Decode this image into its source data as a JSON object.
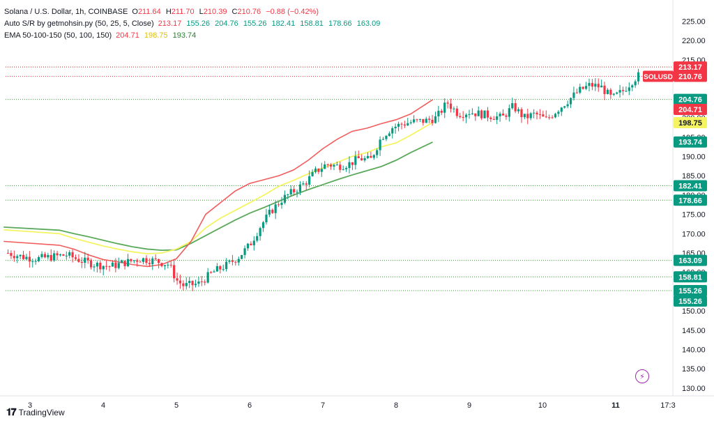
{
  "legend": {
    "title": "Solana / U.S. Dollar, 1h, COINBASE",
    "ohlc": {
      "o": "211.64",
      "h": "211.70",
      "l": "210.39",
      "c": "210.76",
      "chg": "−0.88 (−0.42%)"
    },
    "sr_label": "Auto S/R by getmohsin.py (50, 25, 5, Close)",
    "sr_values": [
      "213.17",
      "155.26",
      "204.76",
      "155.26",
      "182.41",
      "158.81",
      "178.66",
      "163.09"
    ],
    "ema_label": "EMA 50-100-150 (50, 100, 150)",
    "ema_values": [
      "204.71",
      "198.75",
      "193.74"
    ]
  },
  "brand": "TradingView",
  "colors": {
    "up": "#089981",
    "down": "#f23645",
    "ema50": "#f25c5c",
    "ema100": "#f4f462",
    "ema150": "#5aa95a",
    "sr_line": "#2e9c2e",
    "price_line": "#f23645"
  },
  "chart_data": {
    "type": "candlestick",
    "title": "Solana / U.S. Dollar, 1h, COINBASE",
    "y_ticks": [
      130,
      135,
      140,
      145,
      150,
      155,
      160,
      165,
      170,
      175,
      180,
      185,
      190,
      195,
      200,
      205,
      210,
      215,
      220,
      225
    ],
    "ylim": [
      128,
      226
    ],
    "x_ticks": [
      "3",
      "4",
      "5",
      "6",
      "7",
      "8",
      "9",
      "10",
      "11",
      "17:3"
    ],
    "support_resistance": [
      213.17,
      204.76,
      182.41,
      178.66,
      163.09,
      158.81,
      155.26,
      155.26
    ],
    "last_price": {
      "label": "SOLUSD",
      "value": 210.76
    },
    "price_labels": [
      {
        "text": "213.17",
        "value": 213.17,
        "color": "#f23645"
      },
      {
        "text": "210.76",
        "value": 210.76,
        "color": "#f23645"
      },
      {
        "text": "204.76",
        "value": 204.76,
        "color": "#089981"
      },
      {
        "text": "204.71",
        "value": 204.71,
        "color": "#f23645"
      },
      {
        "text": "198.75",
        "value": 198.75,
        "color": "#f4f462"
      },
      {
        "text": "193.74",
        "value": 193.74,
        "color": "#089981"
      },
      {
        "text": "182.41",
        "value": 182.41,
        "color": "#089981"
      },
      {
        "text": "178.66",
        "value": 178.66,
        "color": "#089981"
      },
      {
        "text": "163.09",
        "value": 163.09,
        "color": "#089981"
      },
      {
        "text": "158.81",
        "value": 158.81,
        "color": "#089981"
      },
      {
        "text": "155.26",
        "value": 155.26,
        "color": "#089981"
      },
      {
        "text": "155.26",
        "value": 155.26,
        "color": "#089981"
      }
    ],
    "ema50": [
      168.0,
      167.0,
      166.0,
      164.5,
      163.3,
      162.7,
      162.0,
      161.5,
      162.0,
      163.5,
      168,
      175,
      178,
      181,
      183,
      184,
      185,
      186.5,
      189,
      192,
      194.5,
      196.5,
      197.3,
      198.5,
      199.5,
      201,
      204.7
    ],
    "ema100": [
      171.0,
      170.0,
      168.8,
      167.8,
      166.8,
      166.0,
      165.3,
      164.8,
      165.0,
      166.0,
      168,
      171.5,
      174,
      176,
      178,
      180,
      182.3,
      183.8,
      185.5,
      187,
      188.5,
      190,
      191,
      192.5,
      193.5,
      195.5,
      198.8
    ],
    "ema150": [
      171.7,
      170.9,
      170.0,
      169.2,
      168.3,
      167.4,
      166.6,
      166.0,
      165.7,
      165.8,
      167.5,
      169.5,
      171.5,
      173.5,
      175.3,
      176.8,
      178.4,
      180,
      181.4,
      182.7,
      184,
      185.2,
      186.3,
      187.4,
      189,
      191,
      193.7
    ],
    "ema_x": [
      3.3,
      3.4,
      3.6,
      3.8,
      4.0,
      4.2,
      4.4,
      4.6,
      4.8,
      5.0,
      5.2,
      5.4,
      5.6,
      5.8,
      6.0,
      6.2,
      6.4,
      6.6,
      6.8,
      7.0,
      7.2,
      7.4,
      7.6,
      7.8,
      8.0,
      8.2,
      8.5
    ],
    "close_path_x": [
      2.7,
      2.9,
      3.1,
      3.3,
      3.5,
      3.7,
      3.9,
      4.1,
      4.3,
      4.5,
      4.7,
      4.9,
      5.0,
      5.1,
      5.3,
      5.5,
      5.7,
      5.85,
      6.0,
      6.15,
      6.3,
      6.45,
      6.6,
      6.75,
      6.9,
      7.05,
      7.2,
      7.35,
      7.5,
      7.65,
      7.8,
      7.95,
      8.1,
      8.25,
      8.4,
      8.55,
      8.7,
      8.85,
      9.0,
      9.15,
      9.3,
      9.45,
      9.6,
      9.75,
      9.9,
      10.05,
      10.2,
      10.35,
      10.5,
      10.65,
      10.8,
      10.95,
      11.1,
      11.25,
      11.35
    ],
    "close_path_y": [
      165,
      164,
      163.5,
      164,
      164.5,
      163,
      162,
      161.5,
      162.5,
      163.5,
      163,
      162,
      158,
      156.5,
      157,
      160,
      162,
      164,
      167,
      172,
      176,
      179,
      181,
      183,
      186,
      188,
      187.5,
      188,
      189.5,
      189,
      195,
      197.5,
      198.5,
      199,
      199.2,
      200,
      204,
      201,
      201.5,
      201,
      200.5,
      200,
      203,
      200,
      201,
      199.5,
      202,
      204.5,
      207,
      208.5,
      208,
      205,
      207,
      210,
      211.5
    ]
  }
}
